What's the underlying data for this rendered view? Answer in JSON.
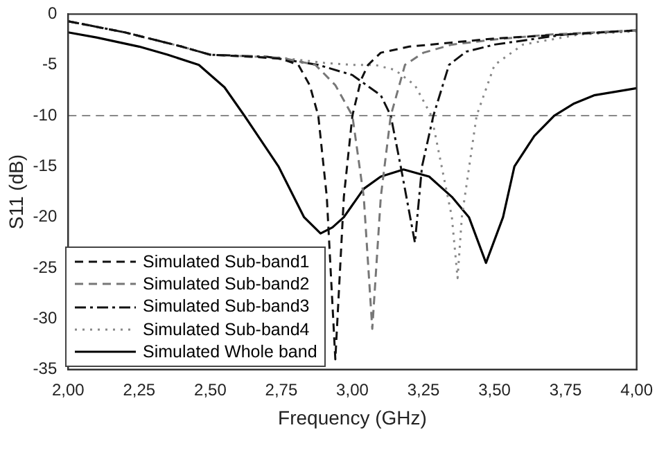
{
  "chart_data": {
    "type": "line",
    "xlabel": "Frequency (GHz)",
    "ylabel": "S11 (dB)",
    "xlim": [
      2.0,
      4.0
    ],
    "ylim": [
      -35,
      0
    ],
    "xticks": [
      {
        "value": 2.0,
        "label": "2,00"
      },
      {
        "value": 2.25,
        "label": "2,25"
      },
      {
        "value": 2.5,
        "label": "2,50"
      },
      {
        "value": 2.75,
        "label": "2,75"
      },
      {
        "value": 3.0,
        "label": "3,00"
      },
      {
        "value": 3.25,
        "label": "3,25"
      },
      {
        "value": 3.5,
        "label": "3,50"
      },
      {
        "value": 3.75,
        "label": "3,75"
      },
      {
        "value": 4.0,
        "label": "4,00"
      }
    ],
    "yticks": [
      -35,
      -30,
      -25,
      -20,
      -15,
      -10,
      -5,
      0
    ],
    "grid": false,
    "legend": "bottom left",
    "marker": "none",
    "ref_lines": [
      {
        "axis": "y",
        "value": -10,
        "color": "#888888",
        "line_style": "dashed"
      }
    ],
    "series": [
      {
        "name": "Simulated Sub-band1",
        "color": "#111111",
        "line_style": "dashed",
        "x": [
          2.0,
          2.2,
          2.4,
          2.5,
          2.65,
          2.75,
          2.81,
          2.85,
          2.88,
          2.91,
          2.94,
          2.97,
          3.0,
          3.03,
          3.055,
          3.1,
          3.2,
          3.35,
          3.5,
          3.75,
          4.0
        ],
        "values": [
          -0.7,
          -1.8,
          -3.2,
          -4.0,
          -4.2,
          -4.4,
          -5.0,
          -7.0,
          -10.0,
          -18.0,
          -34.0,
          -18.0,
          -10.0,
          -6.5,
          -5.0,
          -3.8,
          -3.2,
          -2.8,
          -2.4,
          -2.0,
          -1.6
        ]
      },
      {
        "name": "Simulated Sub-band2",
        "color": "#777777",
        "line_style": "dashed",
        "x": [
          2.0,
          2.2,
          2.4,
          2.5,
          2.65,
          2.75,
          2.87,
          2.94,
          3.0,
          3.04,
          3.07,
          3.1,
          3.135,
          3.185,
          3.25,
          3.35,
          3.5,
          3.7,
          4.0
        ],
        "values": [
          -0.7,
          -1.8,
          -3.2,
          -4.0,
          -4.2,
          -4.3,
          -5.0,
          -7.0,
          -10.0,
          -18.0,
          -31.0,
          -18.0,
          -10.0,
          -5.0,
          -3.8,
          -3.0,
          -2.5,
          -2.0,
          -1.6
        ]
      },
      {
        "name": "Simulated Sub-band3",
        "color": "#111111",
        "line_style": "dashdot",
        "x": [
          2.0,
          2.2,
          2.4,
          2.5,
          2.7,
          2.88,
          3.0,
          3.1,
          3.135,
          3.17,
          3.22,
          3.245,
          3.285,
          3.34,
          3.4,
          3.5,
          3.75,
          4.0
        ],
        "values": [
          -0.7,
          -1.8,
          -3.2,
          -4.0,
          -4.2,
          -5.0,
          -6.0,
          -8.0,
          -10.0,
          -15.0,
          -22.5,
          -15.0,
          -10.0,
          -5.0,
          -3.7,
          -3.0,
          -2.0,
          -1.6
        ]
      },
      {
        "name": "Simulated Sub-band4",
        "color": "#888888",
        "line_style": "dotted",
        "x": [
          2.0,
          2.2,
          2.4,
          2.5,
          2.75,
          2.9,
          3.0,
          3.08,
          3.15,
          3.22,
          3.278,
          3.35,
          3.37,
          3.385,
          3.437,
          3.5,
          3.6,
          3.8,
          4.0
        ],
        "values": [
          -0.7,
          -1.8,
          -3.2,
          -4.0,
          -4.3,
          -4.8,
          -5.0,
          -5.0,
          -5.5,
          -7.0,
          -10.0,
          -20.0,
          -26.0,
          -20.0,
          -10.0,
          -5.0,
          -3.0,
          -2.0,
          -1.7
        ]
      },
      {
        "name": "Simulated Whole band",
        "color": "#000000",
        "line_style": "solid",
        "x": [
          2.0,
          2.1,
          2.25,
          2.35,
          2.46,
          2.55,
          2.62,
          2.68,
          2.74,
          2.83,
          2.888,
          2.93,
          2.97,
          3.04,
          3.1,
          3.18,
          3.27,
          3.35,
          3.41,
          3.47,
          3.53,
          3.57,
          3.64,
          3.71,
          3.78,
          3.85,
          4.0
        ],
        "values": [
          -1.8,
          -2.3,
          -3.2,
          -4.0,
          -5.0,
          -7.2,
          -10.0,
          -12.5,
          -15.0,
          -20.0,
          -21.6,
          -21.0,
          -20.0,
          -17.2,
          -16.0,
          -15.3,
          -16.0,
          -18.0,
          -20.0,
          -24.5,
          -20.0,
          -15.0,
          -12.0,
          -10.0,
          -8.8,
          -8.0,
          -7.3
        ]
      }
    ]
  }
}
